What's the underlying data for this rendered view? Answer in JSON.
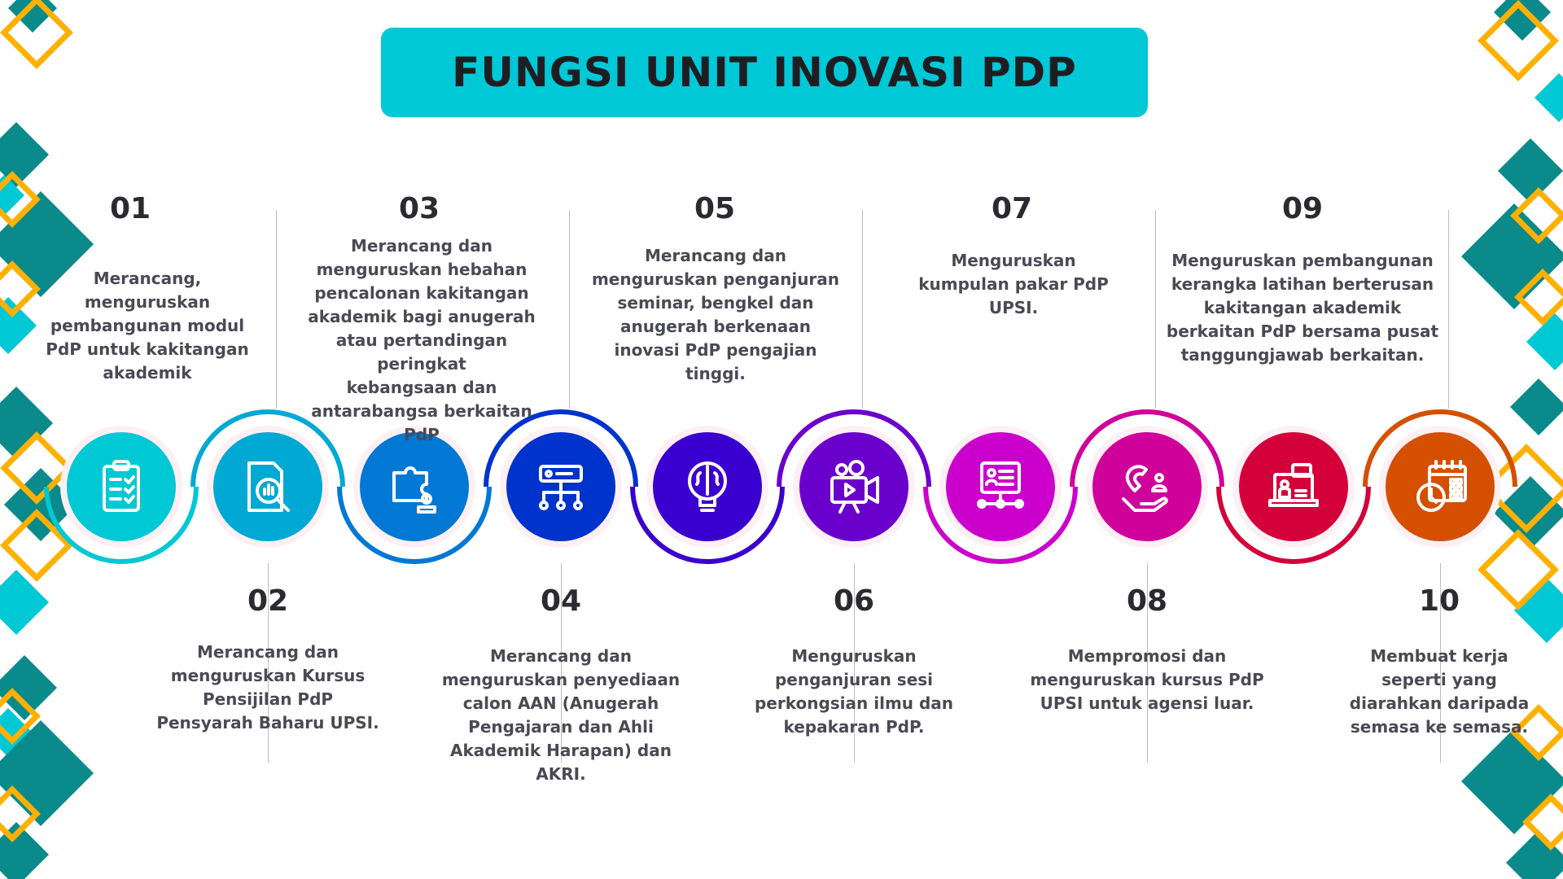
{
  "title": "FUNGSI UNIT INOVASI PDP",
  "colors": {
    "title_bg": "#00c8d7",
    "teal": "#0a8a8a",
    "cyan": "#00c8d4",
    "orange": "#ffb000"
  },
  "items": [
    {
      "number": "01",
      "text": "Merancang,\nmenguruskan\npembangunan modul\nPdP untuk kakitangan\nakademik",
      "color": "#00c8d4",
      "icon": "clipboard-checklist-icon"
    },
    {
      "number": "02",
      "text": "Merancang dan\nmenguruskan Kursus\nPensijilan PdP\nPensyarah Baharu UPSI.",
      "color": "#00a8d4",
      "icon": "document-analysis-icon"
    },
    {
      "number": "03",
      "text": "Merancang dan\nmenguruskan hebahan\npencalonan kakitangan\nakademik bagi anugerah\natau pertandingan peringkat\nkebangsaan dan\nantarabangsa berkaitan PdP",
      "color": "#0078d4",
      "icon": "puzzle-person-icon"
    },
    {
      "number": "04",
      "text": "Merancang dan\nmenguruskan penyediaan\ncalon AAN (Anugerah\nPengajaran dan Ahli\nAkademik Harapan) dan\nAKRI.",
      "color": "#0033cc",
      "icon": "network-hierarchy-icon"
    },
    {
      "number": "05",
      "text": "Merancang dan\nmenguruskan penganjuran\nseminar, bengkel dan\nanugerah berkenaan\ninovasi PdP pengajian\ntinggi.",
      "color": "#3a00d0",
      "icon": "brain-bulb-icon"
    },
    {
      "number": "06",
      "text": "Menguruskan\npenganjuran sesi\nperkongsian ilmu dan\nkepakaran PdP.",
      "color": "#6a00cc",
      "icon": "video-camera-icon"
    },
    {
      "number": "07",
      "text": "Menguruskan\nkumpulan pakar PdP\nUPSI.",
      "color": "#cc00cc",
      "icon": "presentation-network-icon"
    },
    {
      "number": "08",
      "text": "Mempromosi dan\nmenguruskan kursus PdP\nUPSI untuk agensi luar.",
      "color": "#d0009a",
      "icon": "magnet-hand-icon"
    },
    {
      "number": "09",
      "text": "Menguruskan pembangunan\nkerangka latihan berterusan\nkakitangan akademik\nberkaitan PdP bersama pusat\ntanggungjawab berkaitan.",
      "color": "#d4003a",
      "icon": "laptop-chat-icon"
    },
    {
      "number": "10",
      "text": "Membuat kerja\nseperti yang\ndiarahkan daripada\nsemasa ke semasa.",
      "color": "#d45000",
      "icon": "calendar-clock-icon"
    }
  ]
}
